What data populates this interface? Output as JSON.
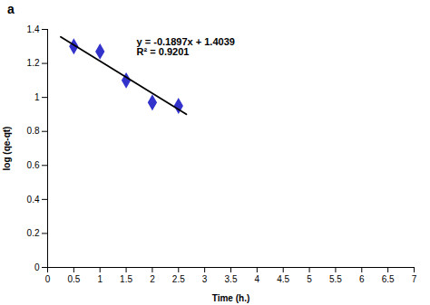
{
  "chart_data": {
    "type": "scatter",
    "title": "a",
    "xlabel": "Time (h.)",
    "ylabel": "log (qe-qt)",
    "series": [
      {
        "type": "scatter",
        "x": [
          0.5,
          1.0,
          1.5,
          2.0,
          2.5
        ],
        "values": [
          1.3,
          1.27,
          1.1,
          0.97,
          0.95
        ],
        "color": "#3333cc",
        "marker": "diamond"
      },
      {
        "type": "line",
        "x": [
          0.25,
          2.65
        ],
        "values": [
          1.356475,
          0.901195
        ],
        "color": "#000000",
        "line_style": "solid"
      }
    ],
    "annotations": [
      {
        "text": "y = -0.1897x + 1.4039\nR² = 0.9201",
        "x": 1.7,
        "y": 1.35
      }
    ],
    "xlim": [
      0,
      7
    ],
    "ylim": [
      0,
      1.4
    ],
    "xticks": [
      0,
      0.5,
      1,
      1.5,
      2,
      2.5,
      3,
      3.5,
      4,
      4.5,
      5,
      5.5,
      6,
      6.5,
      7
    ],
    "yticks": [
      0,
      0.2,
      0.4,
      0.6,
      0.8,
      1.0,
      1.2,
      1.4
    ],
    "grid": false
  }
}
